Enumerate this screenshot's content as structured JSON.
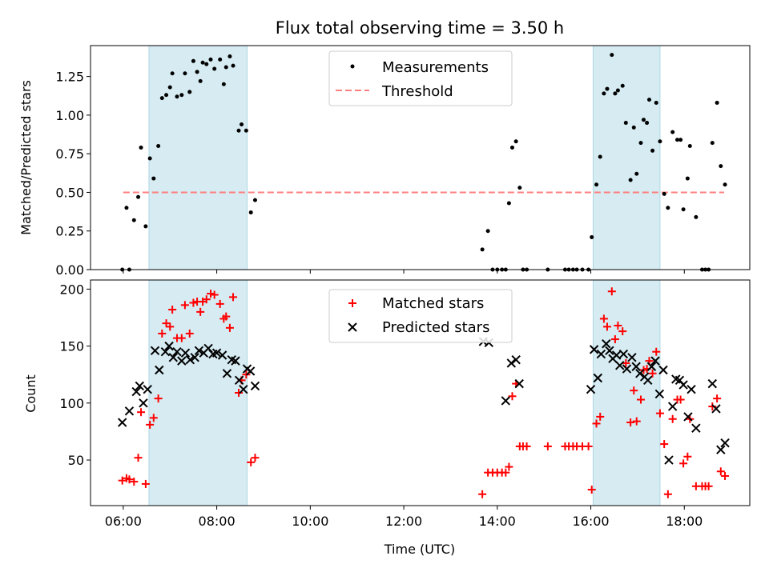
{
  "title": "Flux total observing time = 3.50 h",
  "colors": {
    "measurement": "#000000",
    "threshold": "#ff7f7f",
    "shade": "#add8e6",
    "matched": "#ff0000",
    "predicted": "#000000"
  },
  "chart_data": [
    {
      "type": "scatter",
      "panel": "top",
      "ylabel": "Matched/Predicted stars",
      "xlim_hours": [
        5.3,
        19.4
      ],
      "ylim": [
        0,
        1.45
      ],
      "yticks": [
        0.0,
        0.25,
        0.5,
        0.75,
        1.0,
        1.25
      ],
      "ytick_labels": [
        "0.00",
        "0.25",
        "0.50",
        "0.75",
        "1.00",
        "1.25"
      ],
      "shaded_intervals_hours": [
        [
          6.55,
          8.65
        ],
        [
          16.05,
          17.48
        ]
      ],
      "legend": {
        "placement": "upper center",
        "measurements_label": "Measurements",
        "threshold_label": "Threshold"
      },
      "threshold": {
        "value": 0.5,
        "x_range_hours": [
          6.0,
          18.85
        ]
      },
      "series": [
        {
          "name": "Measurements",
          "points": [
            [
              5.98,
              0.0
            ],
            [
              6.07,
              0.4
            ],
            [
              6.13,
              0.0
            ],
            [
              6.23,
              0.32
            ],
            [
              6.32,
              0.47
            ],
            [
              6.38,
              0.79
            ],
            [
              6.48,
              0.28
            ],
            [
              6.57,
              0.72
            ],
            [
              6.65,
              0.59
            ],
            [
              6.75,
              0.8
            ],
            [
              6.83,
              1.11
            ],
            [
              6.92,
              1.13
            ],
            [
              7.0,
              1.18
            ],
            [
              7.05,
              1.27
            ],
            [
              7.15,
              1.12
            ],
            [
              7.25,
              1.13
            ],
            [
              7.32,
              1.27
            ],
            [
              7.42,
              1.15
            ],
            [
              7.5,
              1.35
            ],
            [
              7.58,
              1.28
            ],
            [
              7.65,
              1.22
            ],
            [
              7.7,
              1.34
            ],
            [
              7.78,
              1.33
            ],
            [
              7.87,
              1.36
            ],
            [
              7.95,
              1.3
            ],
            [
              8.07,
              1.36
            ],
            [
              8.15,
              1.2
            ],
            [
              8.2,
              1.31
            ],
            [
              8.28,
              1.38
            ],
            [
              8.35,
              1.32
            ],
            [
              8.47,
              0.9
            ],
            [
              8.53,
              0.94
            ],
            [
              8.63,
              0.9
            ],
            [
              8.73,
              0.37
            ],
            [
              8.82,
              0.45
            ],
            [
              13.68,
              0.13
            ],
            [
              13.8,
              0.25
            ],
            [
              13.9,
              0.0
            ],
            [
              14.0,
              0.0
            ],
            [
              14.1,
              0.0
            ],
            [
              14.18,
              0.0
            ],
            [
              14.25,
              0.43
            ],
            [
              14.32,
              0.79
            ],
            [
              14.4,
              0.83
            ],
            [
              14.48,
              0.53
            ],
            [
              14.55,
              0.0
            ],
            [
              14.63,
              0.0
            ],
            [
              15.08,
              0.0
            ],
            [
              15.45,
              0.0
            ],
            [
              15.53,
              0.0
            ],
            [
              15.62,
              0.0
            ],
            [
              15.7,
              0.0
            ],
            [
              15.82,
              0.0
            ],
            [
              15.95,
              0.0
            ],
            [
              16.02,
              0.21
            ],
            [
              16.12,
              0.55
            ],
            [
              16.2,
              0.73
            ],
            [
              16.28,
              1.14
            ],
            [
              16.35,
              1.17
            ],
            [
              16.45,
              1.39
            ],
            [
              16.52,
              1.14
            ],
            [
              16.58,
              1.16
            ],
            [
              16.68,
              1.19
            ],
            [
              16.75,
              0.95
            ],
            [
              16.85,
              0.58
            ],
            [
              16.92,
              0.92
            ],
            [
              16.98,
              0.62
            ],
            [
              17.07,
              0.82
            ],
            [
              17.13,
              0.97
            ],
            [
              17.2,
              0.95
            ],
            [
              17.25,
              1.1
            ],
            [
              17.32,
              0.77
            ],
            [
              17.4,
              1.08
            ],
            [
              17.48,
              0.83
            ],
            [
              17.57,
              0.49
            ],
            [
              17.65,
              0.4
            ],
            [
              17.75,
              0.89
            ],
            [
              17.85,
              0.84
            ],
            [
              17.92,
              0.84
            ],
            [
              17.98,
              0.39
            ],
            [
              18.07,
              0.59
            ],
            [
              18.12,
              0.8
            ],
            [
              18.25,
              0.34
            ],
            [
              18.38,
              0.0
            ],
            [
              18.45,
              0.0
            ],
            [
              18.52,
              0.0
            ],
            [
              18.6,
              0.82
            ],
            [
              18.7,
              1.08
            ],
            [
              18.78,
              0.67
            ],
            [
              18.87,
              0.55
            ]
          ]
        }
      ]
    },
    {
      "type": "scatter",
      "panel": "bottom",
      "xlabel": "Time (UTC)",
      "ylabel": "Count",
      "xlim_hours": [
        5.3,
        19.4
      ],
      "ylim": [
        10,
        208
      ],
      "yticks": [
        50,
        100,
        150,
        200
      ],
      "ytick_labels": [
        "50",
        "100",
        "150",
        "200"
      ],
      "xticks_hours": [
        6,
        8,
        10,
        12,
        14,
        16,
        18
      ],
      "xtick_labels": [
        "06:00",
        "08:00",
        "10:00",
        "12:00",
        "14:00",
        "16:00",
        "18:00"
      ],
      "shaded_intervals_hours": [
        [
          6.55,
          8.65
        ],
        [
          16.05,
          17.48
        ]
      ],
      "legend": {
        "placement": "upper center",
        "matched_label": "Matched stars",
        "predicted_label": "Predicted stars"
      },
      "series": [
        {
          "name": "Matched stars",
          "points": [
            [
              5.98,
              32
            ],
            [
              6.07,
              34
            ],
            [
              6.13,
              33
            ],
            [
              6.23,
              31
            ],
            [
              6.32,
              52
            ],
            [
              6.38,
              92
            ],
            [
              6.48,
              29
            ],
            [
              6.57,
              81
            ],
            [
              6.65,
              87
            ],
            [
              6.75,
              104
            ],
            [
              6.83,
              161
            ],
            [
              6.92,
              170
            ],
            [
              7.0,
              167
            ],
            [
              7.05,
              182
            ],
            [
              7.15,
              157
            ],
            [
              7.25,
              157
            ],
            [
              7.32,
              186
            ],
            [
              7.42,
              161
            ],
            [
              7.5,
              188
            ],
            [
              7.58,
              189
            ],
            [
              7.65,
              180
            ],
            [
              7.7,
              189
            ],
            [
              7.78,
              191
            ],
            [
              7.87,
              196
            ],
            [
              7.95,
              195
            ],
            [
              8.07,
              187
            ],
            [
              8.15,
              174
            ],
            [
              8.2,
              176
            ],
            [
              8.28,
              166
            ],
            [
              8.35,
              193
            ],
            [
              8.47,
              109
            ],
            [
              8.53,
              120
            ],
            [
              8.63,
              125
            ],
            [
              8.73,
              48
            ],
            [
              8.82,
              52
            ],
            [
              13.68,
              20
            ],
            [
              13.8,
              39
            ],
            [
              13.9,
              39
            ],
            [
              14.0,
              39
            ],
            [
              14.1,
              39
            ],
            [
              14.18,
              39
            ],
            [
              14.25,
              44
            ],
            [
              14.32,
              106
            ],
            [
              14.4,
              117
            ],
            [
              14.48,
              62
            ],
            [
              14.55,
              62
            ],
            [
              14.63,
              62
            ],
            [
              15.08,
              62
            ],
            [
              15.45,
              62
            ],
            [
              15.53,
              62
            ],
            [
              15.62,
              62
            ],
            [
              15.7,
              62
            ],
            [
              15.82,
              62
            ],
            [
              15.95,
              62
            ],
            [
              16.02,
              24
            ],
            [
              16.12,
              82
            ],
            [
              16.2,
              88
            ],
            [
              16.28,
              174
            ],
            [
              16.35,
              167
            ],
            [
              16.45,
              198
            ],
            [
              16.52,
              156
            ],
            [
              16.58,
              168
            ],
            [
              16.68,
              163
            ],
            [
              16.75,
              135
            ],
            [
              16.85,
              83
            ],
            [
              16.92,
              111
            ],
            [
              16.98,
              84
            ],
            [
              17.07,
              103
            ],
            [
              17.13,
              129
            ],
            [
              17.2,
              130
            ],
            [
              17.25,
              137
            ],
            [
              17.32,
              126
            ],
            [
              17.4,
              145
            ],
            [
              17.48,
              91
            ],
            [
              17.57,
              64
            ],
            [
              17.65,
              20
            ],
            [
              17.75,
              86
            ],
            [
              17.85,
              103
            ],
            [
              17.92,
              103
            ],
            [
              17.98,
              47
            ],
            [
              18.07,
              53
            ],
            [
              18.12,
              86
            ],
            [
              18.25,
              27
            ],
            [
              18.38,
              27
            ],
            [
              18.45,
              27
            ],
            [
              18.52,
              27
            ],
            [
              18.6,
              97
            ],
            [
              18.7,
              104
            ],
            [
              18.78,
              40
            ],
            [
              18.87,
              36
            ]
          ]
        },
        {
          "name": "Predicted stars",
          "points": [
            [
              5.98,
              83
            ],
            [
              6.13,
              93
            ],
            [
              6.28,
              110
            ],
            [
              6.35,
              115
            ],
            [
              6.43,
              100
            ],
            [
              6.52,
              112
            ],
            [
              6.68,
              146
            ],
            [
              6.77,
              129
            ],
            [
              6.9,
              145
            ],
            [
              6.98,
              150
            ],
            [
              7.07,
              140
            ],
            [
              7.15,
              145
            ],
            [
              7.25,
              137
            ],
            [
              7.33,
              144
            ],
            [
              7.43,
              138
            ],
            [
              7.53,
              140
            ],
            [
              7.62,
              146
            ],
            [
              7.72,
              144
            ],
            [
              7.82,
              148
            ],
            [
              7.92,
              143
            ],
            [
              8.0,
              144
            ],
            [
              8.12,
              142
            ],
            [
              8.22,
              126
            ],
            [
              8.32,
              138
            ],
            [
              8.4,
              137
            ],
            [
              8.48,
              120
            ],
            [
              8.57,
              112
            ],
            [
              8.65,
              130
            ],
            [
              8.72,
              128
            ],
            [
              8.82,
              115
            ],
            [
              13.7,
              154
            ],
            [
              13.82,
              153
            ],
            [
              14.18,
              102
            ],
            [
              14.3,
              135
            ],
            [
              14.4,
              138
            ],
            [
              14.47,
              117
            ],
            [
              16.0,
              112
            ],
            [
              16.07,
              147
            ],
            [
              16.15,
              122
            ],
            [
              16.22,
              143
            ],
            [
              16.33,
              152
            ],
            [
              16.4,
              146
            ],
            [
              16.47,
              139
            ],
            [
              16.55,
              142
            ],
            [
              16.62,
              133
            ],
            [
              16.7,
              143
            ],
            [
              16.77,
              130
            ],
            [
              16.88,
              140
            ],
            [
              16.97,
              132
            ],
            [
              17.05,
              126
            ],
            [
              17.15,
              123
            ],
            [
              17.22,
              120
            ],
            [
              17.3,
              132
            ],
            [
              17.38,
              137
            ],
            [
              17.47,
              108
            ],
            [
              17.55,
              129
            ],
            [
              17.67,
              50
            ],
            [
              17.75,
              97
            ],
            [
              17.82,
              121
            ],
            [
              17.9,
              120
            ],
            [
              17.98,
              116
            ],
            [
              18.08,
              88
            ],
            [
              18.15,
              112
            ],
            [
              18.25,
              78
            ],
            [
              18.6,
              117
            ],
            [
              18.68,
              95
            ],
            [
              18.78,
              59
            ],
            [
              18.87,
              65
            ]
          ]
        }
      ]
    }
  ]
}
